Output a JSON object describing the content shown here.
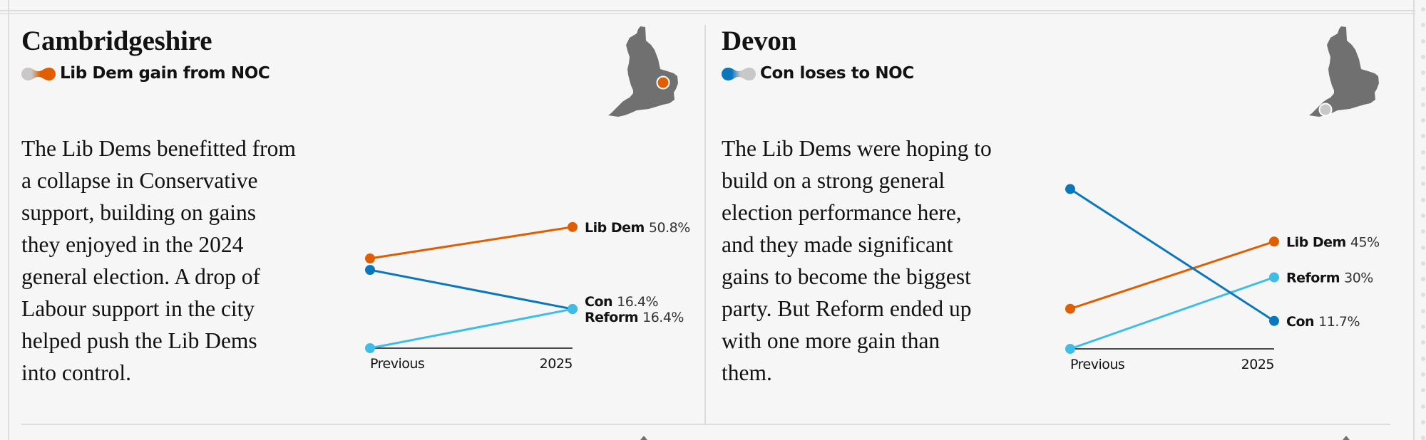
{
  "colors": {
    "libdem": "#e05e00",
    "con": "#0a77bd",
    "reform": "#3fbde6",
    "noc": "#c8c8c8",
    "map": "#707070",
    "axis": "#121212"
  },
  "panels": [
    {
      "title": "Cambridgeshire",
      "status": "Lib Dem gain from NOC",
      "badge": {
        "from": "noc",
        "to": "libdem"
      },
      "body": "The Lib Dems benefitted from\na collapse in Conservative\nsupport, building on gains\nthey enjoyed in the 2024\ngeneral election. A drop of\nLabour support in the city\nhelped push the Lib Dems\ninto control.",
      "map_marker": "libdem"
    },
    {
      "title": "Devon",
      "status": "Con loses to NOC",
      "badge": {
        "from": "con",
        "to": "noc"
      },
      "body": "The Lib Dems were hoping to\nbuild on a strong general\nelection performance here,\nand they made significant\ngains to become the biggest\nparty. But Reform ended up\nwith one more gain than\nthem.",
      "map_marker": "noc"
    }
  ],
  "chart_data": [
    {
      "type": "line",
      "title": "Cambridgeshire",
      "categories": [
        "Previous",
        "2025"
      ],
      "ylim": [
        0,
        60
      ],
      "series": [
        {
          "name": "Lib Dem",
          "key": "libdem",
          "values": [
            37.6,
            50.8
          ],
          "label": "50.8%"
        },
        {
          "name": "Con",
          "key": "con",
          "values": [
            32.8,
            16.4
          ],
          "label": "16.4%"
        },
        {
          "name": "Reform",
          "key": "reform",
          "values": [
            0,
            16.4
          ],
          "label": "16.4%"
        }
      ]
    },
    {
      "type": "line",
      "title": "Devon",
      "categories": [
        "Previous",
        "2025"
      ],
      "ylim": [
        0,
        70
      ],
      "series": [
        {
          "name": "Lib Dem",
          "key": "libdem",
          "values": [
            16.8,
            45
          ],
          "label": "45%"
        },
        {
          "name": "Reform",
          "key": "reform",
          "values": [
            0,
            30
          ],
          "label": "30%"
        },
        {
          "name": "Con",
          "key": "con",
          "values": [
            67,
            11.7
          ],
          "label": "11.7%"
        }
      ]
    }
  ]
}
